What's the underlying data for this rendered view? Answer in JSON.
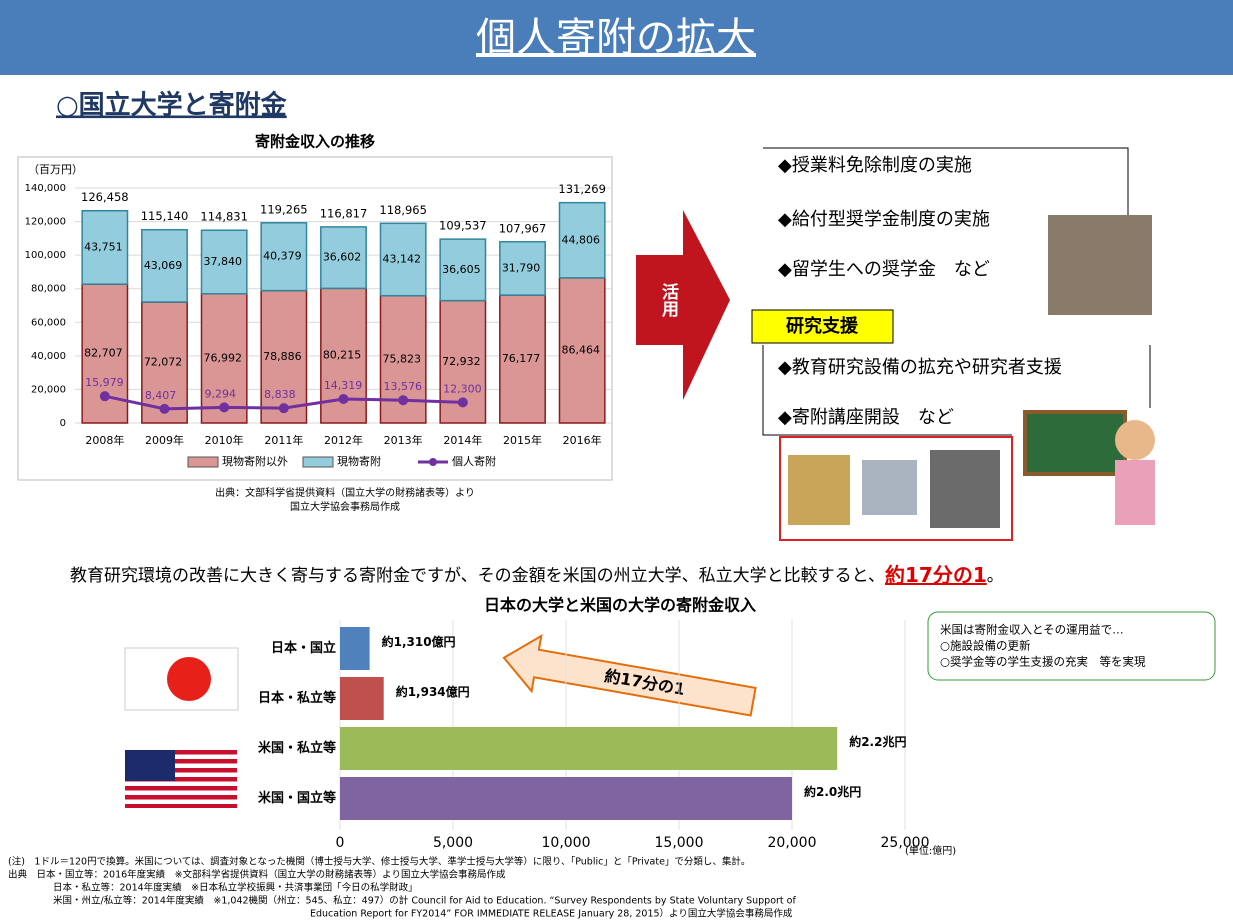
{
  "header": {
    "title": "個人寄附の拡大"
  },
  "section": {
    "heading": "○国立大学と寄附金"
  },
  "usage": {
    "arrow_label": "活用",
    "items": [
      "◆授業料免除制度の実施",
      "◆給付型奨学金制度の実施",
      "◆留学生への奨学金　など"
    ],
    "research_tag": "研究支援",
    "research_items": [
      "◆教育研究設備の拡充や研究者支援",
      "◆寄附講座開設　など"
    ]
  },
  "statement": {
    "text": "教育研究環境の改善に大きく寄与する寄附金ですが、その金額を米国の州立大学、私立大学と比較すると、",
    "highlight": "約17分の1",
    "end": "。"
  },
  "comparison_arrow": "約17分の1",
  "note": {
    "lines": [
      "米国は寄附金収入とその運用益で…",
      "○施設設備の更新",
      "○奨学金等の学生支援の充実　等を実現"
    ]
  },
  "source1": {
    "lines": [
      "出典：文部科学省提供資料（国立大学の財務諸表等）より",
      "国立大学協会事務局作成"
    ]
  },
  "footnotes": [
    "(注)　1ドル＝120円で換算。米国については、調査対象となった機関（博士授与大学、修士授与大学、準学士授与大学等）に限り、「Public」と「Private」で分類し、集計。",
    "出典　日本・国立等：2016年度実績　※文部科学省提供資料（国立大学の財務諸表等）より国立大学協会事務局作成",
    "日本・私立等：2014年度実績　※日本私立学校振興・共済事業団「今日の私学財政」",
    "米国・州立/私立等：2014年度実績　※1,042機関（州立：545、私立：497）の計 Council for Aid to Education. “Survey Respondents by State Voluntary Support of",
    "Education Report for FY2014” FOR IMMEDIATE RELEASE January 28, 2015）より国立大学協会事務局作成"
  ],
  "chart_data": [
    {
      "type": "stacked_bar_line",
      "title": "寄附金収入の推移",
      "y_unit": "（百万円）",
      "categories": [
        "2008年",
        "2009年",
        "2010年",
        "2011年",
        "2012年",
        "2013年",
        "2014年",
        "2015年",
        "2016年"
      ],
      "series": [
        {
          "name": "現物寄附以外",
          "color": "#d99694",
          "values": [
            82707,
            72072,
            76992,
            78886,
            80215,
            75823,
            72932,
            76177,
            86464
          ],
          "value_labels": [
            "82,707",
            "72,072",
            "76,992",
            "78,886",
            "80,215",
            "75,823",
            "72,932",
            "76,177",
            "86,464"
          ]
        },
        {
          "name": "現物寄附",
          "color": "#93cddd",
          "values": [
            43751,
            43069,
            37840,
            40379,
            36602,
            43142,
            36605,
            31790,
            44806
          ],
          "value_labels": [
            "43,751",
            "43,069",
            "37,840",
            "40,379",
            "36,602",
            "43,142",
            "36,605",
            "31,790",
            "44,806"
          ]
        },
        {
          "name": "個人寄附",
          "type": "line",
          "color": "#7030a0",
          "values": [
            15979,
            8407,
            9294,
            8838,
            14319,
            13576,
            12300,
            null,
            null
          ],
          "value_labels": [
            "15,979",
            "8,407",
            "9,294",
            "8,838",
            "14,319",
            "13,576",
            "12,300",
            null,
            null
          ]
        }
      ],
      "total_labels": [
        "126,458",
        "115,140",
        "114,831",
        "119,265",
        "116,817",
        "118,965",
        "109,537",
        "107,967",
        "131,269"
      ],
      "ylim": [
        0,
        140000
      ],
      "yticks": [
        0,
        {
          "value": 20000,
          "label": "20,000"
        },
        {
          "value": 40000,
          "label": "40,000"
        },
        {
          "value": 60000,
          "label": "60,000"
        },
        {
          "value": 80000,
          "label": "80,000"
        },
        {
          "value": 100000,
          "label": "100,000"
        },
        {
          "value": 120000,
          "label": "120,000"
        },
        {
          "value": 140000,
          "label": "140,000"
        }
      ],
      "grid": true
    },
    {
      "type": "hbar",
      "title": "日本の大学と米国の大学の寄附金収入",
      "unit": "(単位:億円)",
      "categories": [
        "日本・国立",
        "日本・私立等",
        "米国・私立等",
        "米国・国立等"
      ],
      "values": [
        1310,
        1934,
        22000,
        20000
      ],
      "value_labels": [
        "約1,310億円",
        "約1,934億円",
        "約2.2兆円",
        "約2.0兆円"
      ],
      "colors": [
        "#4f81bd",
        "#c0504d",
        "#9bbb59",
        "#8064a2"
      ],
      "xlim": [
        0,
        25000
      ],
      "xticks": [
        0,
        {
          "value": 5000,
          "label": "5,000"
        },
        {
          "value": 10000,
          "label": "10,000"
        },
        {
          "value": 15000,
          "label": "15,000"
        },
        {
          "value": 20000,
          "label": "20,000"
        },
        {
          "value": 25000,
          "label": "25,000"
        }
      ],
      "grid": true
    }
  ]
}
